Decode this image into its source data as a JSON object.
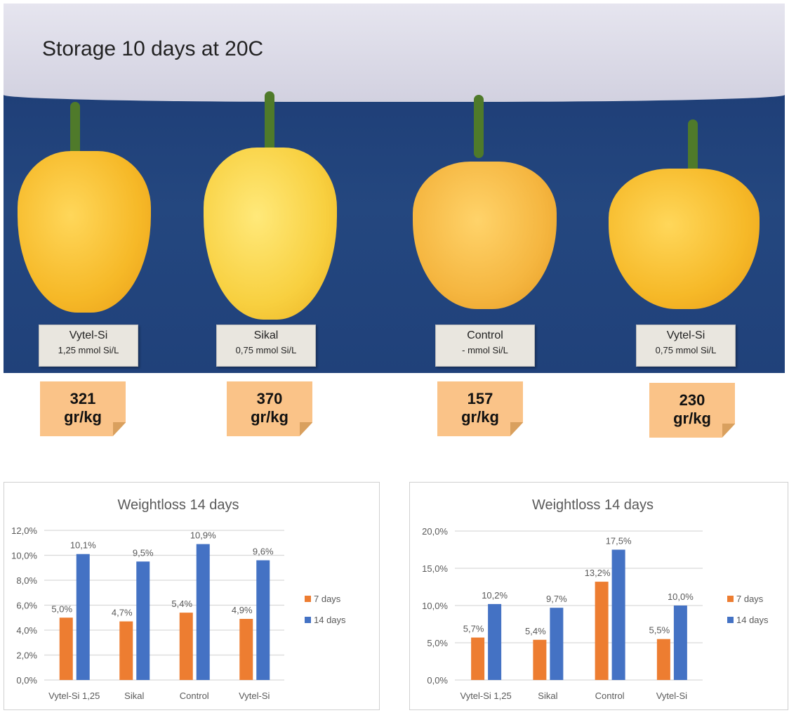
{
  "photo": {
    "title": "Storage 10 days at 20C",
    "samples": [
      {
        "name": "Vytel-Si",
        "dose": "1,25 mmol Si/L",
        "value": "321",
        "unit": "gr/kg"
      },
      {
        "name": "Sikal",
        "dose": "0,75 mmol Si/L",
        "value": "370",
        "unit": "gr/kg"
      },
      {
        "name": "Control",
        "dose": "- mmol Si/L",
        "value": "157",
        "unit": "gr/kg"
      },
      {
        "name": "Vytel-Si",
        "dose": "0,75 mmol Si/L",
        "value": "230",
        "unit": "gr/kg"
      }
    ]
  },
  "colors": {
    "s7": "#ed7d31",
    "s14": "#4472c4",
    "grid": "#d9d9d9"
  },
  "chart_data": [
    {
      "type": "bar",
      "title": "Weightloss 14 days",
      "categories": [
        "Vytel-Si 1,25",
        "Sikal",
        "Control",
        "Vytel-Si"
      ],
      "series": [
        {
          "name": "7 days",
          "values": [
            5.0,
            4.7,
            5.4,
            4.9
          ],
          "labels": [
            "5,0%",
            "4,7%",
            "5,4%",
            "4,9%"
          ]
        },
        {
          "name": "14 days",
          "values": [
            10.1,
            9.5,
            10.9,
            9.6
          ],
          "labels": [
            "10,1%",
            "9,5%",
            "10,9%",
            "9,6%"
          ]
        }
      ],
      "ylim": [
        0,
        12
      ],
      "yticks": [
        "0,0%",
        "2,0%",
        "4,0%",
        "6,0%",
        "8,0%",
        "10,0%",
        "12,0%"
      ],
      "grid": true,
      "legend": "right"
    },
    {
      "type": "bar",
      "title": "Weightloss 14 days",
      "categories": [
        "Vytel-Si 1,25",
        "Sikal",
        "Control",
        "Vytel-Si"
      ],
      "series": [
        {
          "name": "7 days",
          "values": [
            5.7,
            5.4,
            13.2,
            5.5
          ],
          "labels": [
            "5,7%",
            "5,4%",
            "13,2%",
            "5,5%"
          ]
        },
        {
          "name": "14 days",
          "values": [
            10.2,
            9.7,
            17.5,
            10.0
          ],
          "labels": [
            "10,2%",
            "9,7%",
            "17,5%",
            "10,0%"
          ]
        }
      ],
      "ylim": [
        0,
        20
      ],
      "yticks": [
        "0,0%",
        "5,0%",
        "10,0%",
        "15,0%",
        "20,0%"
      ],
      "grid": true,
      "legend": "right"
    }
  ]
}
